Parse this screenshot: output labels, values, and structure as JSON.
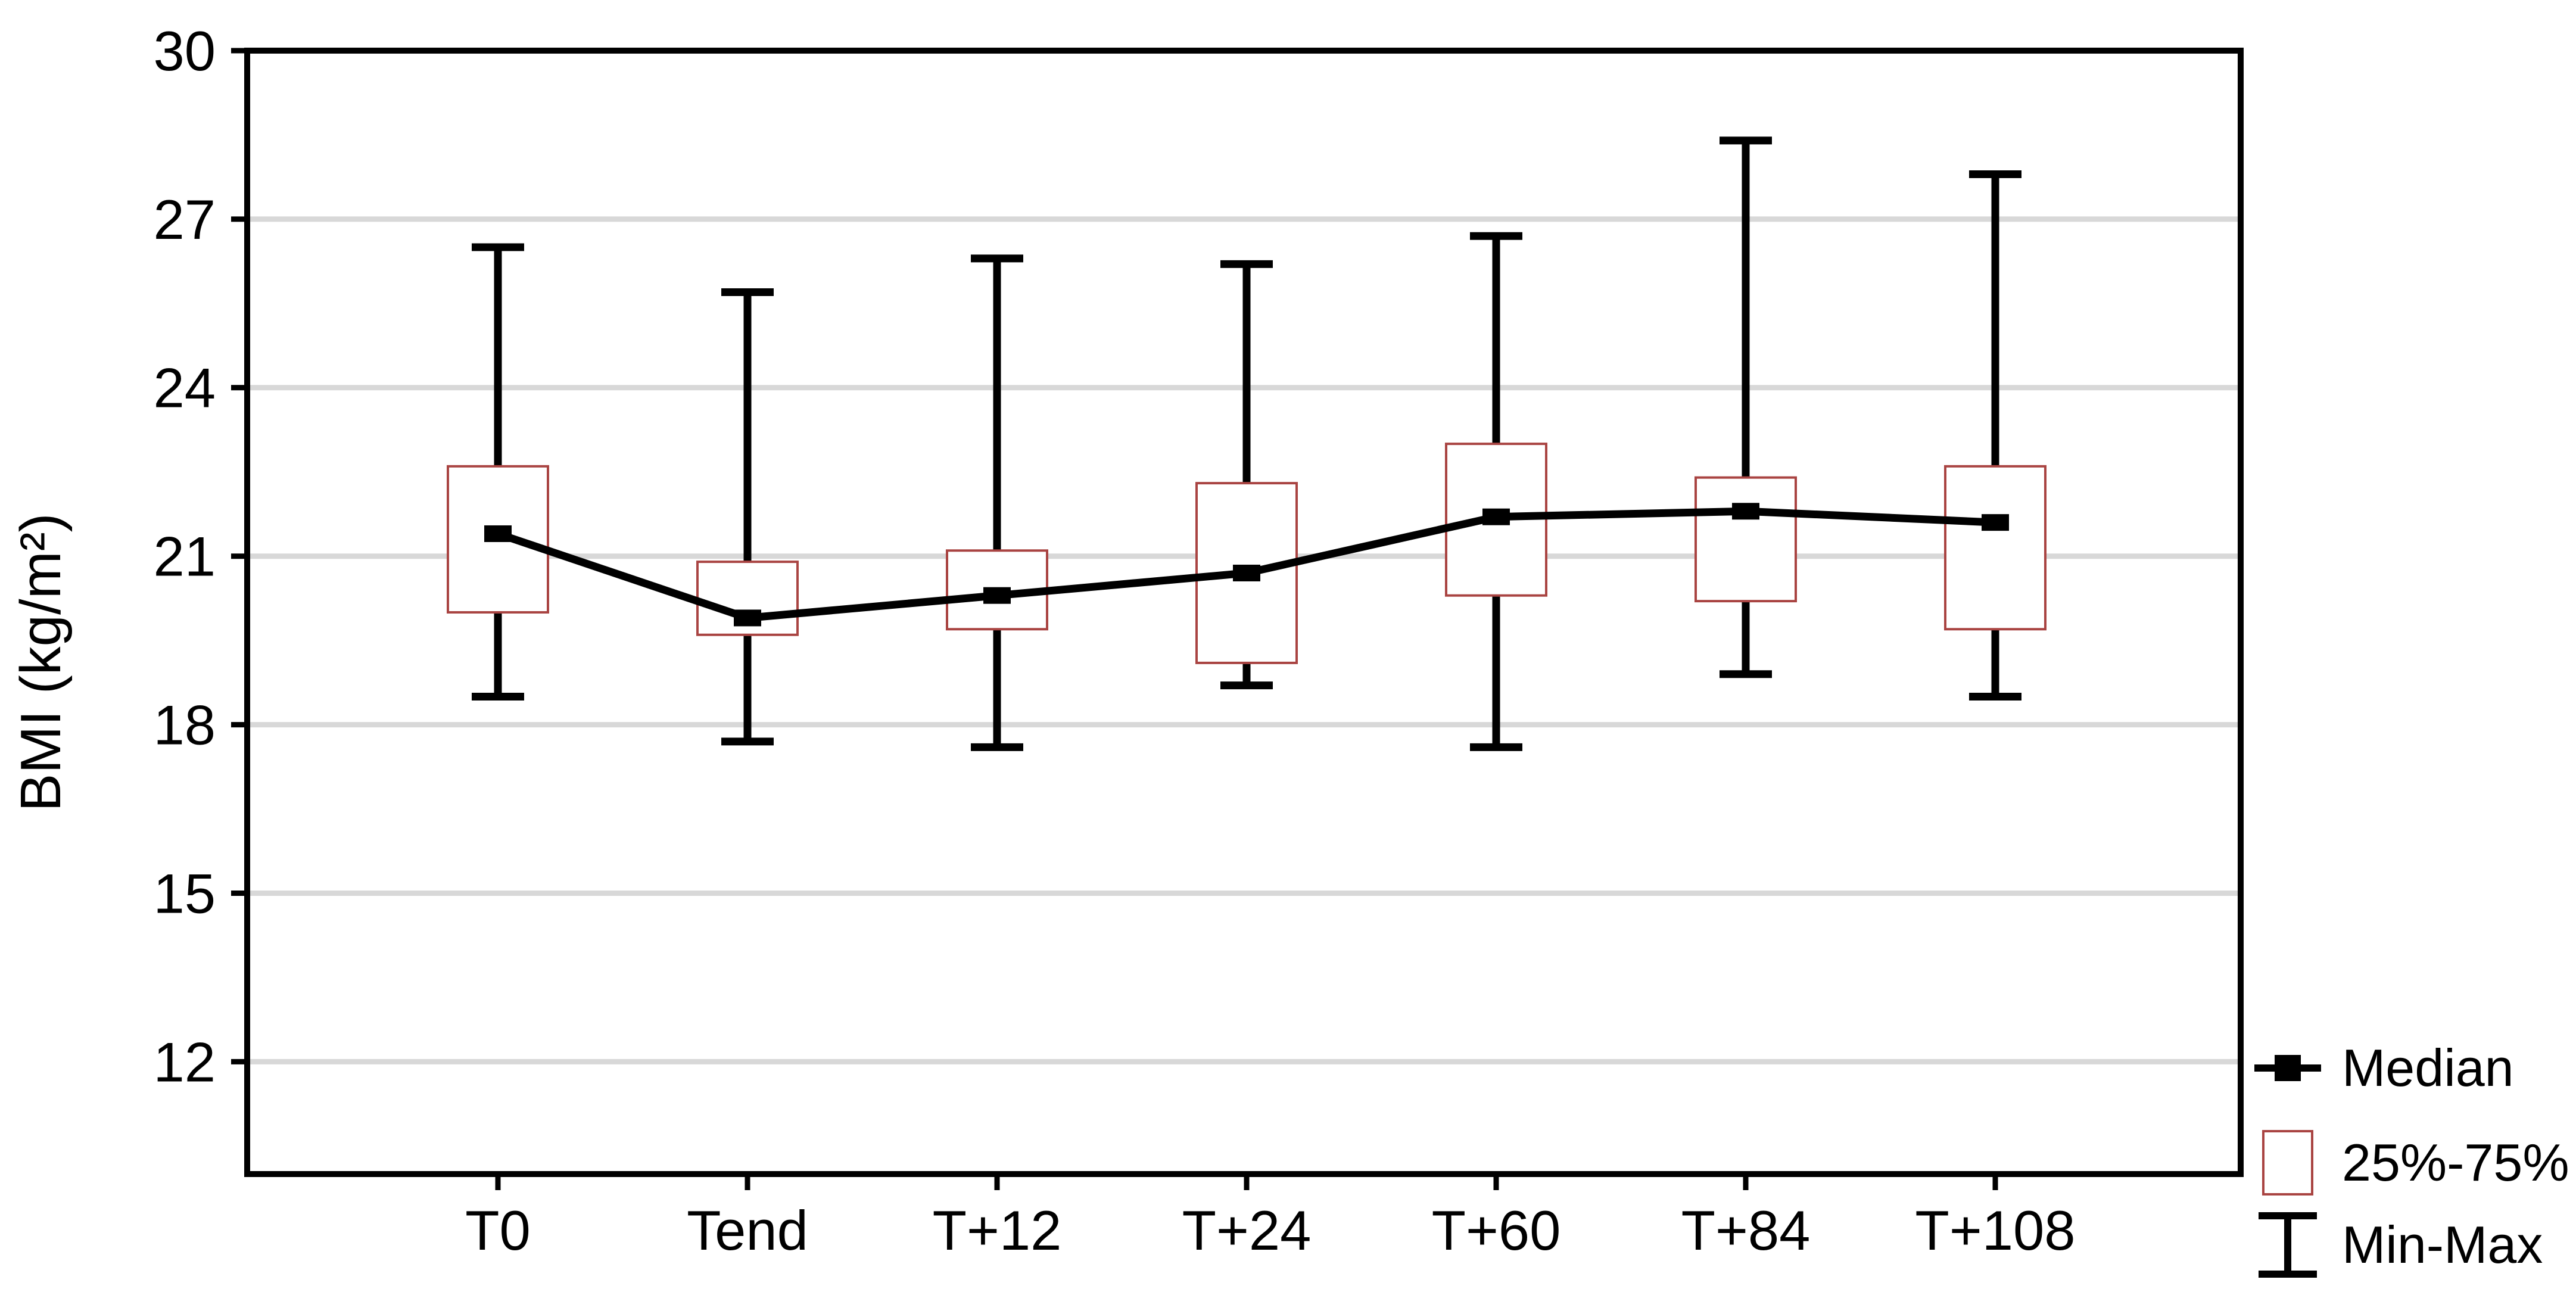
{
  "figure": {
    "background": "#ffffff",
    "y_axis_title": "BMI (kg/m²)",
    "legend": {
      "items": [
        {
          "key": "median",
          "label": "Median"
        },
        {
          "key": "iqr",
          "label": "25%-75%"
        },
        {
          "key": "minmax",
          "label": "Min-Max"
        }
      ]
    }
  },
  "chart_data": {
    "type": "box",
    "title": "",
    "xlabel": "",
    "ylabel": "BMI (kg/m²)",
    "categories": [
      "T0",
      "Tend",
      "T+12",
      "T+24",
      "T+60",
      "T+84",
      "T+108"
    ],
    "stats": [
      {
        "category": "T0",
        "min": 18.5,
        "q1": 20.0,
        "median": 21.4,
        "q3": 22.6,
        "max": 26.5
      },
      {
        "category": "Tend",
        "min": 17.7,
        "q1": 19.6,
        "median": 19.9,
        "q3": 20.9,
        "max": 25.7
      },
      {
        "category": "T+12",
        "min": 17.6,
        "q1": 19.7,
        "median": 20.3,
        "q3": 21.1,
        "max": 26.3
      },
      {
        "category": "T+24",
        "min": 18.7,
        "q1": 19.1,
        "median": 20.7,
        "q3": 22.3,
        "max": 26.2
      },
      {
        "category": "T+60",
        "min": 17.6,
        "q1": 20.3,
        "median": 21.7,
        "q3": 23.0,
        "max": 26.7
      },
      {
        "category": "T+84",
        "min": 18.9,
        "q1": 20.2,
        "median": 21.8,
        "q3": 22.4,
        "max": 28.4
      },
      {
        "category": "T+108",
        "min": 18.5,
        "q1": 19.7,
        "median": 21.6,
        "q3": 22.6,
        "max": 27.8
      }
    ],
    "yticks": [
      30,
      27,
      24,
      21,
      18,
      15,
      12
    ],
    "ylim": [
      10,
      30
    ],
    "grid": true,
    "legend_position": "outside-bottom-right",
    "legend_entries": [
      "Median",
      "25%-75%",
      "Min-Max"
    ],
    "colors": {
      "box_stroke": "#a94442",
      "median_line": "#000000",
      "whisker": "#000000",
      "gridline": "#d8d8d8",
      "text": "#000000",
      "frame": "#000000",
      "box_fill": "#ffffff"
    }
  }
}
